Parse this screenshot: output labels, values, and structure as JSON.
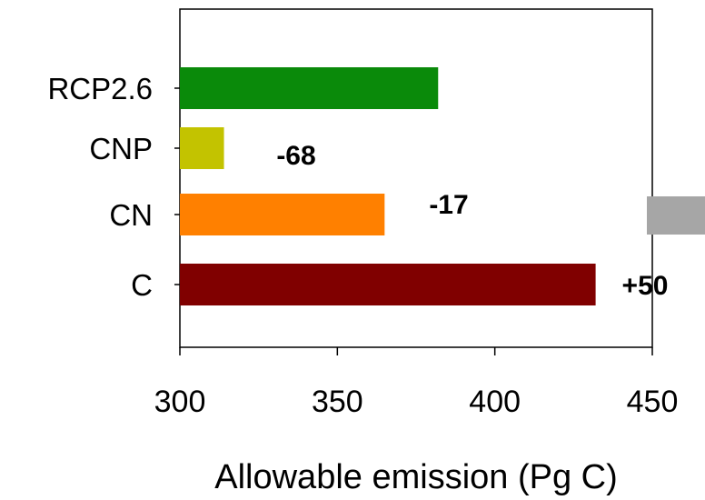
{
  "chart_data": {
    "type": "bar",
    "orientation": "horizontal",
    "categories": [
      "RCP2.6",
      "CNP",
      "CN",
      "C"
    ],
    "values": [
      382,
      314,
      365,
      432
    ],
    "colors": [
      "#0a8a0a",
      "#c3c300",
      "#ff8000",
      "#800000"
    ],
    "annotations": [
      {
        "category": "RCP2.6",
        "text": ""
      },
      {
        "category": "CNP",
        "text": "-68"
      },
      {
        "category": "CN",
        "text": "-17"
      },
      {
        "category": "C",
        "text": "+50"
      }
    ],
    "xlim": [
      300,
      450
    ],
    "xticks": [
      300,
      350,
      400,
      450
    ],
    "xlabel": "Allowable emission (Pg C)",
    "ylabel": "",
    "title": "",
    "grid": false,
    "legend_partial": {
      "color": "#a6a6a6",
      "label": ""
    }
  }
}
